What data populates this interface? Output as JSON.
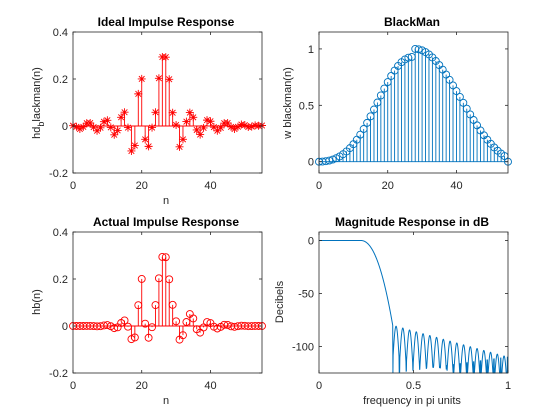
{
  "chart_data": [
    {
      "type": "stem",
      "title": "Ideal Impulse Response",
      "xlabel": "n",
      "ylabel_main": "hd",
      "ylabel_sub": "b",
      "ylabel_rest": "lackman(n)",
      "xlim": [
        0,
        55
      ],
      "ylim": [
        -0.2,
        0.4
      ],
      "xticks": [
        0,
        20,
        40
      ],
      "yticks": [
        -0.2,
        0,
        0.2,
        0.4
      ],
      "marker": "*",
      "color": "#ff0000",
      "x": [
        0,
        1,
        2,
        3,
        4,
        5,
        6,
        7,
        8,
        9,
        10,
        11,
        12,
        13,
        14,
        15,
        16,
        17,
        18,
        19,
        20,
        21,
        22,
        23,
        24,
        25,
        26,
        27,
        28,
        29,
        30,
        31,
        32,
        33,
        34,
        35,
        36,
        37,
        38,
        39,
        40,
        41,
        42,
        43,
        44,
        45,
        46,
        47,
        48,
        49,
        50,
        51,
        52,
        53,
        54,
        55
      ],
      "values": [
        0.0014,
        -0.0034,
        -0.0128,
        -0.0038,
        0.012,
        0.0128,
        -0.0049,
        -0.0203,
        -0.0077,
        0.0183,
        0.0244,
        -0.0059,
        -0.0373,
        -0.0189,
        0.0371,
        0.0586,
        -0.0068,
        -0.1063,
        -0.0831,
        0.1367,
        0.2003,
        -0.0567,
        -0.0867,
        -0.0067,
        0.0583,
        0.203,
        0.2938,
        0.293,
        0.1988,
        0.0565,
        0.0045,
        -0.0887,
        -0.0567,
        0.0187,
        0.0571,
        0.0369,
        -0.0168,
        -0.0365,
        -0.0082,
        0.025,
        0.0202,
        -0.0049,
        -0.0203,
        -0.0078,
        0.0121,
        0.0128,
        -0.0038,
        -0.0128,
        -0.0034,
        0.0066,
        0.004,
        -0.0045,
        -0.0028,
        0.0027,
        0.0008,
        0.0021
      ]
    },
    {
      "type": "stem",
      "title": "BlackMan",
      "xlabel": "",
      "ylabel": "w blackman(n)",
      "xlim": [
        0,
        55
      ],
      "ylim": [
        -0.1,
        1.15
      ],
      "xticks": [
        0,
        20,
        40
      ],
      "yticks": [
        0,
        0.5,
        1
      ],
      "marker": "o",
      "color": "#0072bd",
      "x": [
        0,
        1,
        2,
        3,
        4,
        5,
        6,
        7,
        8,
        9,
        10,
        11,
        12,
        13,
        14,
        15,
        16,
        17,
        18,
        19,
        20,
        21,
        22,
        23,
        24,
        25,
        26,
        27,
        28,
        29,
        30,
        31,
        32,
        33,
        34,
        35,
        36,
        37,
        38,
        39,
        40,
        41,
        42,
        43,
        44,
        45,
        46,
        47,
        48,
        49,
        50,
        51,
        52,
        53,
        54,
        55
      ],
      "values": [
        0.0,
        0.0011,
        0.0046,
        0.0106,
        0.0193,
        0.0313,
        0.047,
        0.0668,
        0.0912,
        0.1205,
        0.1551,
        0.1949,
        0.24,
        0.29,
        0.3444,
        0.4024,
        0.463,
        0.5251,
        0.5874,
        0.6484,
        0.7065,
        0.7602,
        0.8081,
        0.8491,
        0.8823,
        0.9069,
        0.9226,
        0.929,
        0.9999,
        0.9969,
        0.9876,
        0.9723,
        0.9511,
        0.9245,
        0.8929,
        0.8566,
        0.8163,
        0.7725,
        0.7257,
        0.6767,
        0.626,
        0.5743,
        0.5222,
        0.4704,
        0.4194,
        0.3698,
        0.3222,
        0.2769,
        0.2344,
        0.195,
        0.1589,
        0.1263,
        0.0973,
        0.072,
        0.0503,
        0.0
      ]
    },
    {
      "type": "stem",
      "title": "Actual Impulse Response",
      "xlabel": "n",
      "ylabel": "hb(n)",
      "xlim": [
        0,
        55
      ],
      "ylim": [
        -0.2,
        0.4
      ],
      "xticks": [
        0,
        20,
        40
      ],
      "yticks": [
        -0.2,
        0,
        0.2,
        0.4
      ],
      "marker": "o",
      "color": "#ff0000",
      "x": [
        0,
        1,
        2,
        3,
        4,
        5,
        6,
        7,
        8,
        9,
        10,
        11,
        12,
        13,
        14,
        15,
        16,
        17,
        18,
        19,
        20,
        21,
        22,
        23,
        24,
        25,
        26,
        27,
        28,
        29,
        30,
        31,
        32,
        33,
        34,
        35,
        36,
        37,
        38,
        39,
        40,
        41,
        42,
        43,
        44,
        45,
        46,
        47,
        48,
        49,
        50,
        51,
        52,
        53,
        54,
        55
      ],
      "values": [
        0.0,
        0.0,
        0.0,
        0.0,
        0.0002,
        0.0004,
        -0.0002,
        -0.0014,
        -0.0007,
        0.0022,
        0.0038,
        -0.0011,
        -0.009,
        -0.0055,
        0.0128,
        0.0236,
        -0.0031,
        -0.0558,
        -0.0488,
        0.0886,
        0.2003,
        0.01,
        -0.05,
        -0.005,
        0.089,
        0.203,
        0.2938,
        0.293,
        0.1988,
        0.09,
        0.02,
        -0.058,
        -0.039,
        0.017,
        0.051,
        0.032,
        -0.0137,
        -0.0282,
        -0.006,
        0.0169,
        0.0126,
        -0.0028,
        -0.0106,
        -0.0037,
        0.0051,
        0.0047,
        -0.0012,
        -0.0035,
        -0.0008,
        0.0013,
        0.0006,
        -0.0006,
        -0.0003,
        0.0002,
        0.0,
        0.0
      ]
    },
    {
      "type": "line",
      "title": "Magnitude Response in dB",
      "xlabel": "frequency in pi units",
      "ylabel": "Decibels",
      "xlim": [
        0,
        1
      ],
      "ylim": [
        -125,
        8
      ],
      "xticks": [
        0,
        0.5,
        1
      ],
      "yticks": [
        -100,
        -50,
        0
      ],
      "color": "#0072bd",
      "passband_end": 0.22,
      "transition_end": 0.39,
      "stopband_floor": -80,
      "min_floor": -125
    }
  ]
}
